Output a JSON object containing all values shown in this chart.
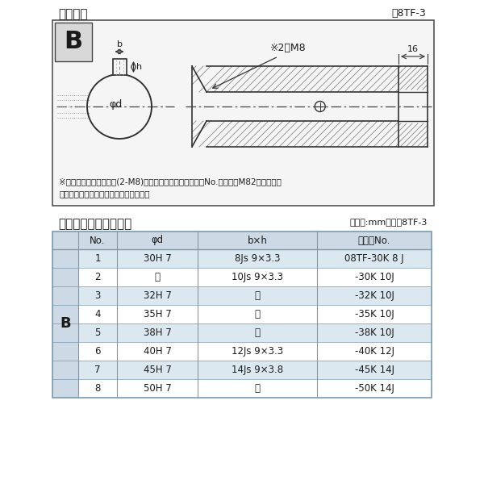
{
  "title_top": "軸穴形状",
  "fig_label_top": "図8TF-3",
  "diagram_note1": "※セットボルト用タップ(2-M8)が必要な場合は右記コードNo.の末尾にM82を付ける。",
  "diagram_note2": "（セットボルトは付属されています。）",
  "table_title": "軸穴形状コード一覧表",
  "table_unit": "（単位:mm）　表8TF-3",
  "col_headers": [
    "No.",
    "φd",
    "b×h",
    "コードNo."
  ],
  "row_label": "B",
  "rows": [
    [
      "1",
      "30H 7",
      "8Js 9×3.3",
      "08TF-30K 8 J"
    ],
    [
      "2",
      "〃",
      "10Js 9×3.3",
      "-30K 10J"
    ],
    [
      "3",
      "32H 7",
      "〃",
      "-32K 10J"
    ],
    [
      "4",
      "35H 7",
      "〃",
      "-35K 10J"
    ],
    [
      "5",
      "38H 7",
      "〃",
      "-38K 10J"
    ],
    [
      "6",
      "40H 7",
      "12Js 9×3.3",
      "-40K 12J"
    ],
    [
      "7",
      "45H 7",
      "14Js 9×3.8",
      "-45K 14J"
    ],
    [
      "8",
      "50H 7",
      "〃",
      "-50K 14J"
    ]
  ],
  "header_bg": "#cdd9e5",
  "row_even_bg": "#dce8f0",
  "row_odd_bg": "#ffffff",
  "border_color": "#7a9ab0",
  "bg_color": "#ffffff",
  "text_color": "#1a1a1a",
  "diag_bg": "#f5f5f5",
  "diag_border": "#555555",
  "hatch_color": "#888888",
  "line_color": "#333333"
}
